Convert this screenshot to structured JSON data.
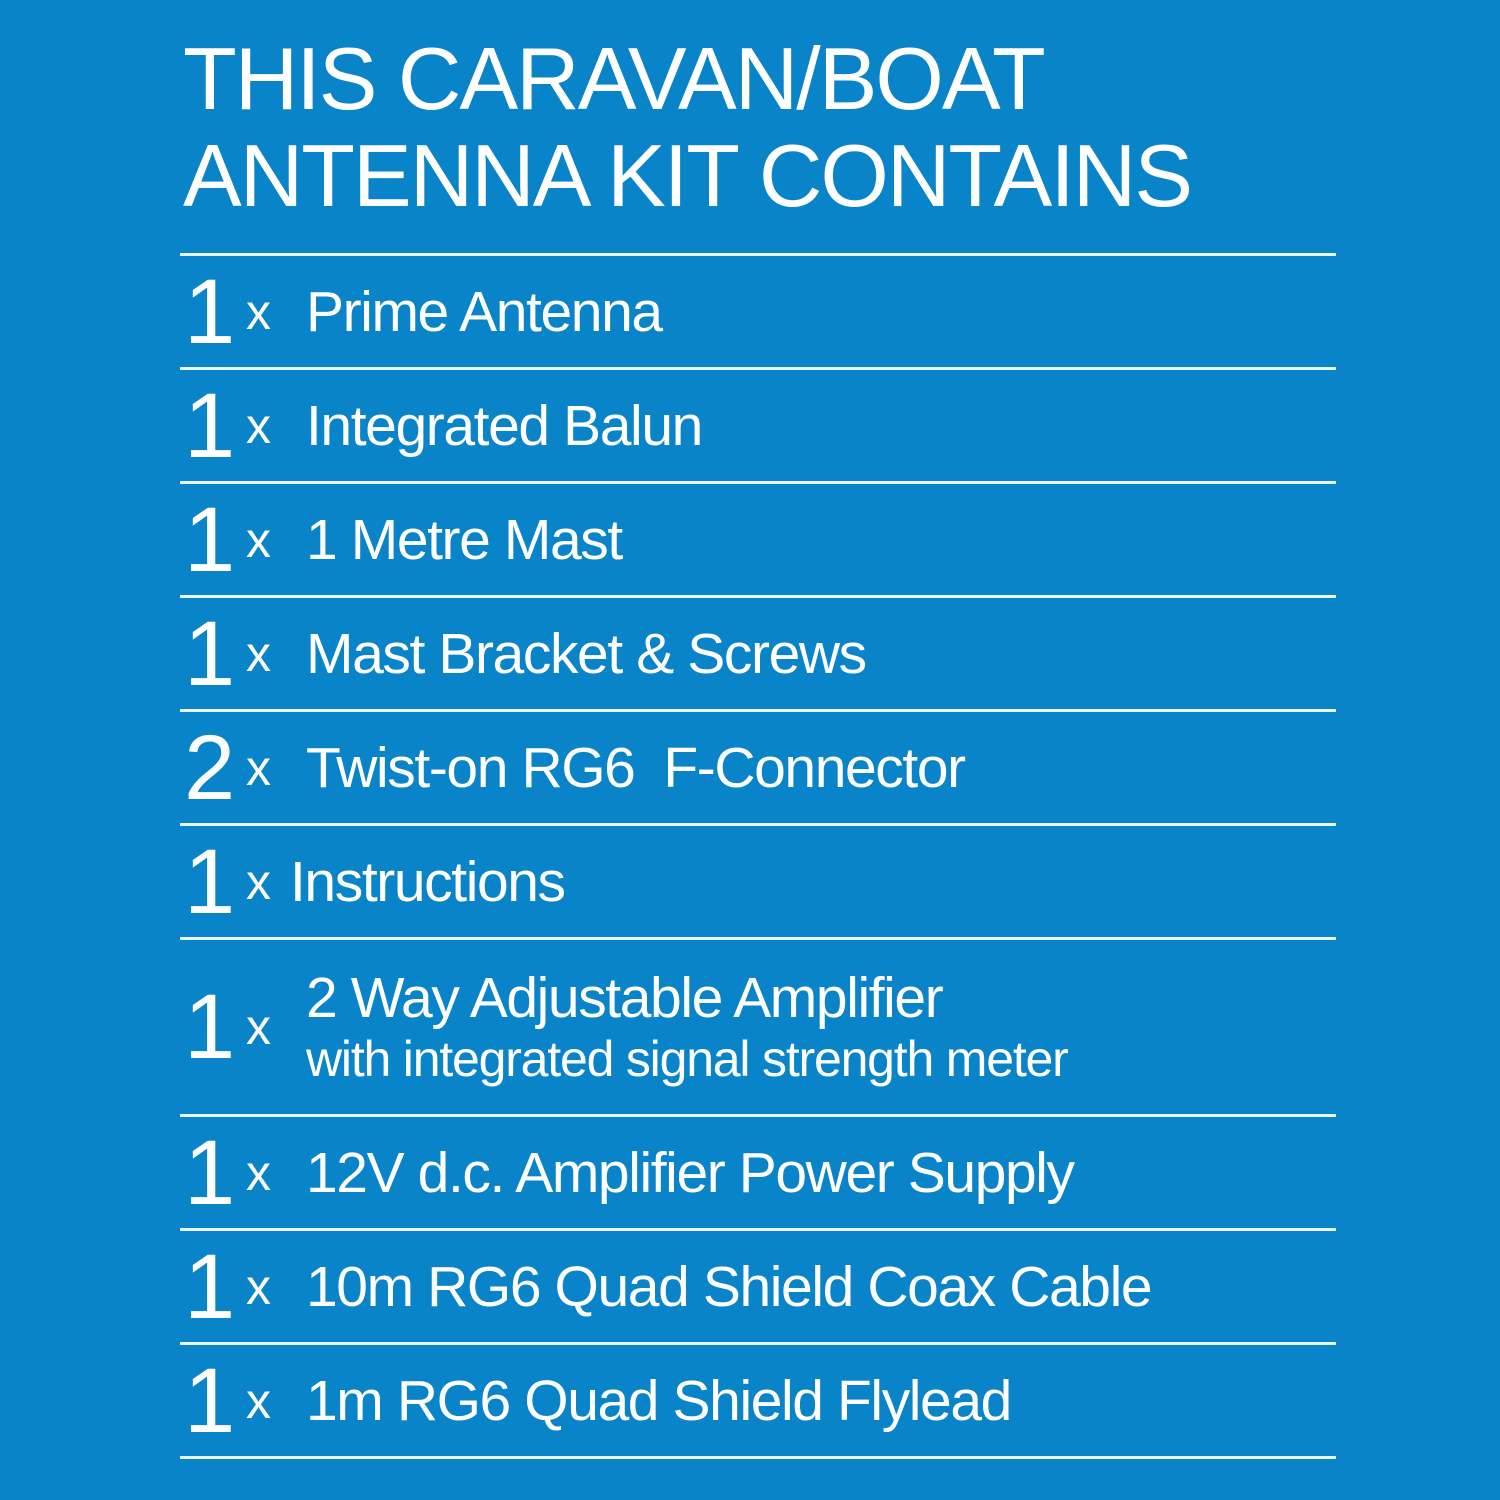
{
  "title": {
    "line1": "THIS CARAVAN/BOAT",
    "line2": "ANTENNA KIT CONTAINS"
  },
  "items": [
    {
      "qty": "1",
      "x": "x",
      "label": "Prime Antenna"
    },
    {
      "qty": "1",
      "x": "x",
      "label": "Integrated Balun"
    },
    {
      "qty": "1",
      "x": "x",
      "label": "1 Metre Mast"
    },
    {
      "qty": "1",
      "x": "x",
      "label": "Mast Bracket & Screws"
    },
    {
      "qty": "2",
      "x": "x",
      "label": "Twist-on RG6  F-Connector"
    },
    {
      "qty": "1",
      "x": "x",
      "label": "Instructions"
    },
    {
      "qty": "1",
      "x": "x",
      "label": "2 Way Adjustable Amplifier",
      "sublabel": "with integrated signal strength meter"
    },
    {
      "qty": "1",
      "x": "x",
      "label": "12V d.c. Amplifier Power Supply"
    },
    {
      "qty": "1",
      "x": "x",
      "label": "10m RG6 Quad Shield Coax Cable"
    },
    {
      "qty": "1",
      "x": "x",
      "label": "1m RG6 Quad Shield Flylead"
    }
  ],
  "colors": {
    "background": "#0a84c8",
    "text": "#ffffff"
  }
}
